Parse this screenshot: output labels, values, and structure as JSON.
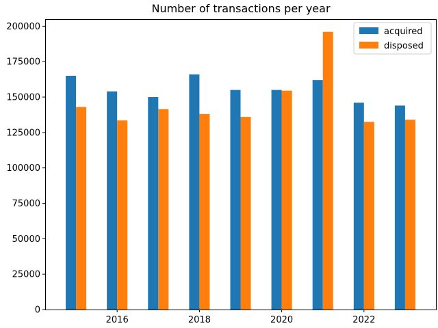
{
  "chart_data": {
    "type": "bar",
    "title": "Number of transactions per year",
    "xlabel": "",
    "ylabel": "",
    "x": [
      2015,
      2016,
      2017,
      2018,
      2019,
      2020,
      2021,
      2022,
      2023
    ],
    "x_ticks": [
      2016,
      2018,
      2020,
      2022
    ],
    "x_tick_labels": [
      "2016",
      "2018",
      "2020",
      "2022"
    ],
    "xlim": [
      2014.25,
      2023.75
    ],
    "ylim": [
      0,
      205000
    ],
    "y_ticks": [
      0,
      25000,
      50000,
      75000,
      100000,
      125000,
      150000,
      175000,
      200000
    ],
    "y_tick_labels": [
      "0",
      "25000",
      "50000",
      "75000",
      "100000",
      "125000",
      "150000",
      "175000",
      "200000"
    ],
    "grid": false,
    "legend_position": "top-right",
    "series": [
      {
        "name": "acquired",
        "color": "#1f77b4",
        "values": [
          165000,
          154000,
          150000,
          166000,
          155000,
          155000,
          162000,
          146000,
          144000
        ]
      },
      {
        "name": "disposed",
        "color": "#ff7f0e",
        "values": [
          143000,
          133500,
          141500,
          138000,
          136000,
          154500,
          196000,
          132500,
          134000
        ]
      }
    ]
  }
}
